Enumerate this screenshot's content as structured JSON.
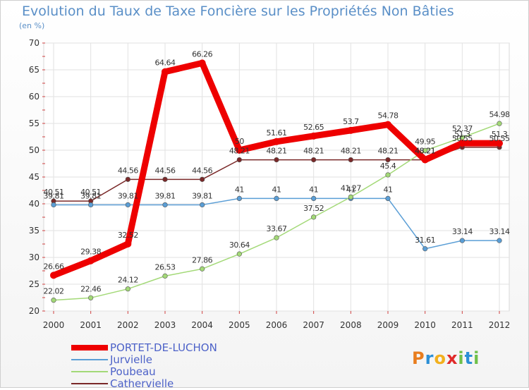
{
  "title": "Evolution du Taux de Taxe Foncière sur les Propriétés Non Bâties",
  "unit_label": "(en %)",
  "chart_data": {
    "type": "line",
    "title": "Evolution du Taux de Taxe Foncière sur les Propriétés Non Bâties",
    "ylabel": "(en %)",
    "xlabel": "",
    "categories": [
      "2000",
      "2001",
      "2002",
      "2003",
      "2004",
      "2005",
      "2006",
      "2007",
      "2008",
      "2009",
      "2010",
      "2011",
      "2012"
    ],
    "ylim": [
      20,
      70
    ],
    "yticks": [
      20,
      25,
      30,
      35,
      40,
      45,
      50,
      55,
      60,
      65,
      70
    ],
    "grid": true,
    "series": [
      {
        "name": "Cathervielle",
        "color": "#7a2828",
        "thick": false,
        "values": [
          40.51,
          40.51,
          44.56,
          44.56,
          44.56,
          48.21,
          48.21,
          48.21,
          48.21,
          48.21,
          48.21,
          50.55,
          50.55
        ],
        "labels": [
          "40.51",
          "40.51",
          "44.56",
          "44.56",
          "44.56",
          "48.21",
          "48.21",
          "48.21",
          "48.21",
          "48.21",
          "48.21",
          "50.55",
          "50.55"
        ]
      },
      {
        "name": "Jurvielle",
        "color": "#5a9ed6",
        "thick": false,
        "values": [
          39.81,
          39.81,
          39.81,
          39.81,
          39.81,
          41,
          41,
          41,
          41,
          41,
          31.61,
          33.14,
          33.14
        ],
        "labels": [
          "39.81",
          "39.81",
          "39.81",
          "39.81",
          "39.81",
          "41",
          "41",
          "41",
          "41",
          "41",
          "31.61",
          "33.14",
          "33.14"
        ]
      },
      {
        "name": "Poubeau",
        "color": "#a3d977",
        "thick": false,
        "values": [
          22.02,
          22.46,
          24.12,
          26.53,
          27.86,
          30.64,
          33.67,
          37.52,
          41.27,
          45.4,
          49.95,
          52.37,
          54.98
        ],
        "labels": [
          "22.02",
          "22.46",
          "24.12",
          "26.53",
          "27.86",
          "30.64",
          "33.67",
          "37.52",
          "41.27",
          "45.4",
          "49.95",
          "52.37",
          "54.98"
        ]
      },
      {
        "name": "PORTET-DE-LUCHON",
        "color": "#ee0000",
        "thick": true,
        "values": [
          26.66,
          29.38,
          32.52,
          64.64,
          66.26,
          50,
          51.61,
          52.65,
          53.7,
          54.78,
          48.21,
          51.3,
          51.3
        ],
        "labels": [
          "26.66",
          "29.38",
          "32.52",
          "64.64",
          "66.26",
          "50",
          "51.61",
          "52.65",
          "53.7",
          "54.78",
          "48.21",
          "51.3",
          "51.3"
        ]
      }
    ]
  },
  "legend": [
    {
      "name": "PORTET-DE-LUCHON",
      "color": "#ee0000"
    },
    {
      "name": "Jurvielle",
      "color": "#5a9ed6"
    },
    {
      "name": "Poubeau",
      "color": "#a3d977"
    },
    {
      "name": "Cathervielle",
      "color": "#7a2828"
    }
  ],
  "logo": {
    "letters": [
      "P",
      "r",
      "o",
      "x",
      "i",
      "t",
      "i"
    ],
    "colors": [
      "#e87d1e",
      "#2b8fd6",
      "#f2b01e",
      "#e02a2a",
      "#6fc04a",
      "#2b8fd6",
      "#6fc04a"
    ]
  }
}
